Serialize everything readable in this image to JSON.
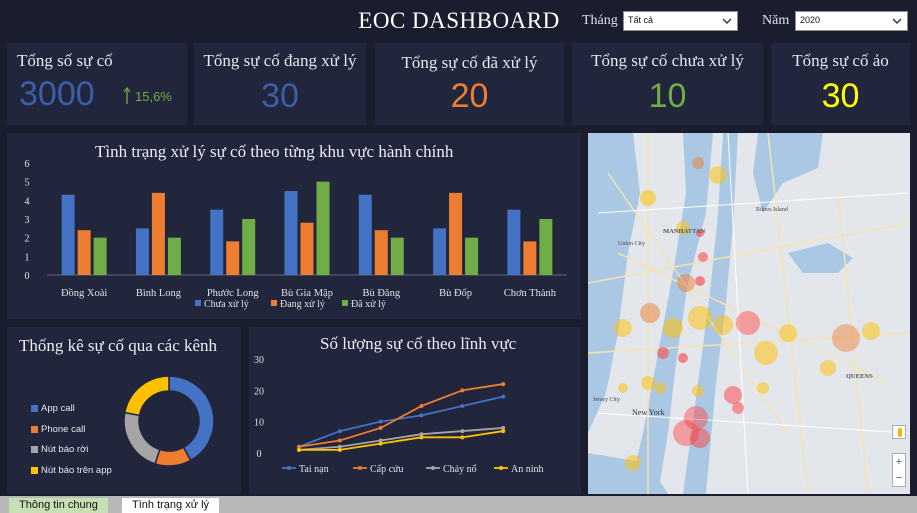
{
  "header": {
    "title": "EOC DASHBOARD",
    "month_label": "Tháng",
    "month_value": "Tất cả",
    "year_label": "Năm",
    "year_value": "2020"
  },
  "kpis": [
    {
      "title": "Tổng số sự cố",
      "value": "3000",
      "trend": "15,6%",
      "color": "#3b5ea8",
      "trend_color": "#70ad47"
    },
    {
      "title": "Tổng sự cố đang xử lý",
      "value": "30",
      "color": "#3b5ea8"
    },
    {
      "title": "Tổng sự cố đã xử lý",
      "value": "20",
      "color": "#ed7d31"
    },
    {
      "title": "Tổng sự cố chưa xử lý",
      "value": "10",
      "color": "#70ad47"
    },
    {
      "title": "Tổng sự cố ảo",
      "value": "30",
      "color": "#ffff00"
    }
  ],
  "chart_data": [
    {
      "type": "bar",
      "title": "Tình trạng xử lý sự cố theo từng khu vực hành chính",
      "categories": [
        "Đồng Xoài",
        "Bình Long",
        "Phước Long",
        "Bù Gia Mập",
        "Bù Đăng",
        "Bù Đốp",
        "Chơn Thành"
      ],
      "yticks": [
        "0",
        "1",
        "2",
        "3",
        "4",
        "5",
        "6"
      ],
      "ylim": [
        0,
        6
      ],
      "legend_position": "bottom",
      "series": [
        {
          "name": "Chưa xử lý",
          "color": "#4472c4",
          "values": [
            4.3,
            2.5,
            3.5,
            4.5,
            4.3,
            2.5,
            3.5
          ]
        },
        {
          "name": "Đang xử lý",
          "color": "#ed7d31",
          "values": [
            2.4,
            4.4,
            1.8,
            2.8,
            2.4,
            4.4,
            1.8
          ]
        },
        {
          "name": "Đã xử lý",
          "color": "#70ad47",
          "values": [
            2.0,
            2.0,
            3.0,
            5.0,
            2.0,
            2.0,
            3.0
          ]
        }
      ]
    },
    {
      "type": "pie",
      "title": "Thống kê sự cố qua các kênh",
      "legend_position": "left",
      "series": [
        {
          "name": "App call",
          "color": "#4472c4",
          "value": 42
        },
        {
          "name": "Phone call",
          "color": "#ed7d31",
          "value": 13
        },
        {
          "name": "Nút báo rời",
          "color": "#a5a5a5",
          "value": 23
        },
        {
          "name": "Nút báo trên app",
          "color": "#ffc000",
          "value": 22
        }
      ]
    },
    {
      "type": "line",
      "title": "Số lượng sự cố theo lĩnh vực",
      "x": [
        1,
        2,
        3,
        4,
        5,
        6,
        7
      ],
      "yticks": [
        "0",
        "10",
        "20",
        "30"
      ],
      "ylim": [
        0,
        30
      ],
      "legend_position": "bottom",
      "series": [
        {
          "name": "Tai nạn",
          "color": "#4472c4",
          "values": [
            2,
            7,
            10,
            12,
            15,
            18,
            null
          ]
        },
        {
          "name": "Cấp cứu",
          "color": "#ed7d31",
          "values": [
            2,
            4,
            8,
            15,
            20,
            22,
            null
          ]
        },
        {
          "name": "Cháy nổ",
          "color": "#a5a5a5",
          "values": [
            1,
            2,
            4,
            6,
            7,
            8,
            null
          ]
        },
        {
          "name": "An ninh",
          "color": "#ffc000",
          "values": [
            1,
            1,
            3,
            5,
            5,
            7,
            null
          ]
        }
      ]
    }
  ],
  "map": {
    "labels": [
      "MANHATTAN",
      "QUEENS",
      "New York",
      "Jersey City",
      "Rikers Island",
      "Union City"
    ]
  },
  "tabs": [
    {
      "label": "Thông tin chung",
      "active": false
    },
    {
      "label": "Tình trạng xử lý",
      "active": true
    }
  ]
}
